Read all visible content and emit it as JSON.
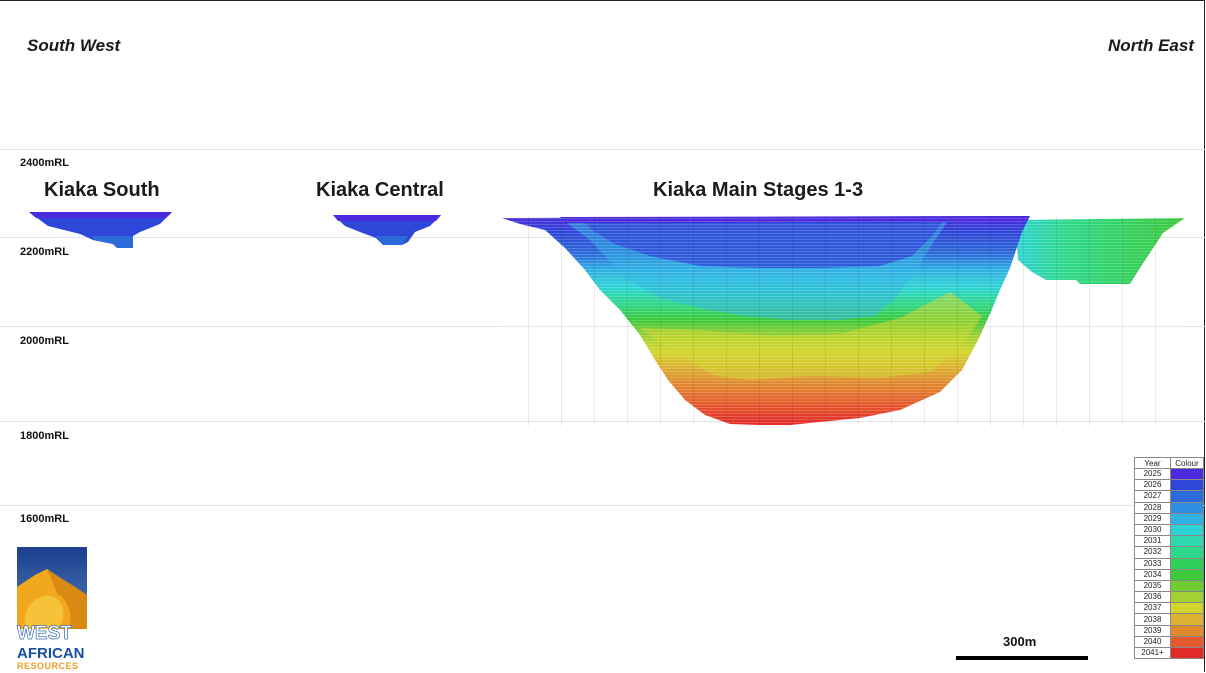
{
  "directions": {
    "left": "South West",
    "right": "North East"
  },
  "elevations": [
    {
      "label": "2400mRL"
    },
    {
      "label": "2200mRL"
    },
    {
      "label": "2000mRL"
    },
    {
      "label": "1800mRL"
    },
    {
      "label": "1600mRL"
    }
  ],
  "pits": [
    {
      "name": "Kiaka South"
    },
    {
      "name": "Kiaka Central"
    },
    {
      "name": "Kiaka Main Stages 1-3"
    }
  ],
  "legend": {
    "header_year": "Year",
    "header_colour": "Colour",
    "rows": [
      {
        "year": "2025",
        "color": "#4b2bdc"
      },
      {
        "year": "2026",
        "color": "#2f47d8"
      },
      {
        "year": "2027",
        "color": "#2b6ad8"
      },
      {
        "year": "2028",
        "color": "#2f8ee0"
      },
      {
        "year": "2029",
        "color": "#2fb2e3"
      },
      {
        "year": "2030",
        "color": "#2ed3d6"
      },
      {
        "year": "2031",
        "color": "#2ed9b0"
      },
      {
        "year": "2032",
        "color": "#2ed88a"
      },
      {
        "year": "2033",
        "color": "#2ed05c"
      },
      {
        "year": "2034",
        "color": "#3cc93a"
      },
      {
        "year": "2035",
        "color": "#6fcc33"
      },
      {
        "year": "2036",
        "color": "#a3d131"
      },
      {
        "year": "2037",
        "color": "#d2d52c"
      },
      {
        "year": "2038",
        "color": "#dcb230"
      },
      {
        "year": "2039",
        "color": "#e08a2e"
      },
      {
        "year": "2040",
        "color": "#e45a2c"
      },
      {
        "year": "2041+",
        "color": "#e32a2a"
      }
    ]
  },
  "scale_bar": {
    "label": "300m"
  },
  "logo": {
    "line1": "WEST",
    "line2": "AFRICAN",
    "line3": "RESOURCES"
  }
}
